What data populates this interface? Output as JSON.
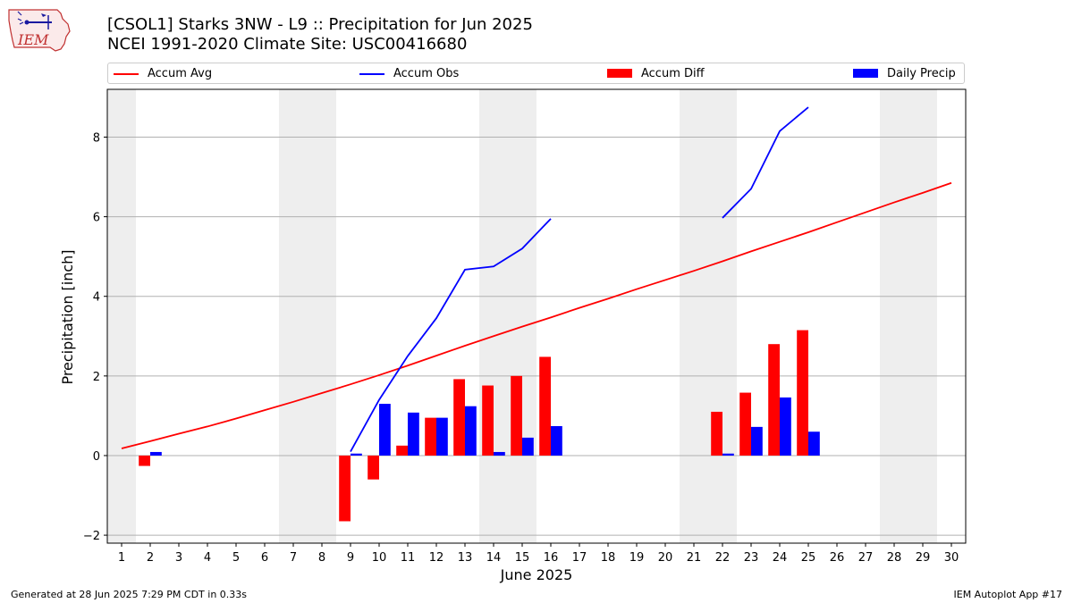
{
  "header": {
    "title_line1": "[CSOL1] Starks 3NW - L9 :: Precipitation for Jun 2025",
    "title_line2": "NCEI 1991-2020 Climate Site: USC00416680",
    "logo_text": "IEM"
  },
  "legend": {
    "items": [
      {
        "label": "Accum Avg",
        "color": "#ff0000",
        "kind": "line"
      },
      {
        "label": "Accum Obs",
        "color": "#0000ff",
        "kind": "line"
      },
      {
        "label": "Accum Diff",
        "color": "#ff0000",
        "kind": "box"
      },
      {
        "label": "Daily Precip",
        "color": "#0000ff",
        "kind": "box"
      }
    ]
  },
  "footer": {
    "left": "Generated at 28 Jun 2025 7:29 PM CDT in 0.33s",
    "right": "IEM Autoplot App #17"
  },
  "chart_data": {
    "type": "bar",
    "xlabel": "June 2025",
    "ylabel": "Precipitation [inch]",
    "xlim": [
      0.5,
      30.5
    ],
    "ylim": [
      -2.2,
      9.2
    ],
    "yticks": [
      -2,
      0,
      2,
      4,
      6,
      8
    ],
    "days": [
      1,
      2,
      3,
      4,
      5,
      6,
      7,
      8,
      9,
      10,
      11,
      12,
      13,
      14,
      15,
      16,
      17,
      18,
      19,
      20,
      21,
      22,
      23,
      24,
      25,
      26,
      27,
      28,
      29,
      30
    ],
    "weekend_spans": [
      [
        0.5,
        1.5
      ],
      [
        6.5,
        8.5
      ],
      [
        13.5,
        15.5
      ],
      [
        20.5,
        22.5
      ],
      [
        27.5,
        29.5
      ]
    ],
    "grid": true,
    "legend_position": "top",
    "series": [
      {
        "name": "Accum Avg",
        "kind": "line",
        "color": "#ff0000",
        "x": [
          1,
          2,
          3,
          4,
          5,
          6,
          7,
          8,
          9,
          10,
          11,
          12,
          13,
          14,
          15,
          16,
          17,
          18,
          19,
          20,
          21,
          22,
          23,
          24,
          25,
          26,
          27,
          28,
          29,
          30
        ],
        "values": [
          0.18,
          0.36,
          0.55,
          0.73,
          0.93,
          1.14,
          1.35,
          1.57,
          1.79,
          2.02,
          2.26,
          2.51,
          2.76,
          3.0,
          3.24,
          3.47,
          3.71,
          3.94,
          4.18,
          4.41,
          4.64,
          4.88,
          5.13,
          5.37,
          5.61,
          5.86,
          6.11,
          6.36,
          6.6,
          6.85
        ]
      },
      {
        "name": "Accum Obs",
        "kind": "line",
        "color": "#0000ff",
        "segments": [
          {
            "x": [
              9,
              10,
              11,
              12,
              13,
              14,
              15,
              16
            ],
            "values": [
              0.1,
              1.4,
              2.5,
              3.45,
              4.67,
              4.75,
              5.2,
              5.95
            ]
          },
          {
            "x": [
              22,
              23,
              24,
              25
            ],
            "values": [
              5.97,
              6.7,
              8.15,
              8.75
            ]
          }
        ]
      },
      {
        "name": "Accum Diff",
        "kind": "bar",
        "color": "#ff0000",
        "x": [
          2,
          9,
          10,
          11,
          12,
          13,
          14,
          15,
          16,
          22,
          23,
          24,
          25
        ],
        "values": [
          -0.26,
          -1.65,
          -0.6,
          0.25,
          0.95,
          1.92,
          1.76,
          2.0,
          2.48,
          1.1,
          1.58,
          2.8,
          3.15
        ]
      },
      {
        "name": "Daily Precip",
        "kind": "bar",
        "color": "#0000ff",
        "x": [
          2,
          9,
          10,
          11,
          12,
          13,
          14,
          15,
          16,
          22,
          23,
          24,
          25
        ],
        "values": [
          0.09,
          0.05,
          1.3,
          1.08,
          0.95,
          1.24,
          0.09,
          0.45,
          0.74,
          0.05,
          0.72,
          1.46,
          0.6
        ]
      }
    ]
  }
}
